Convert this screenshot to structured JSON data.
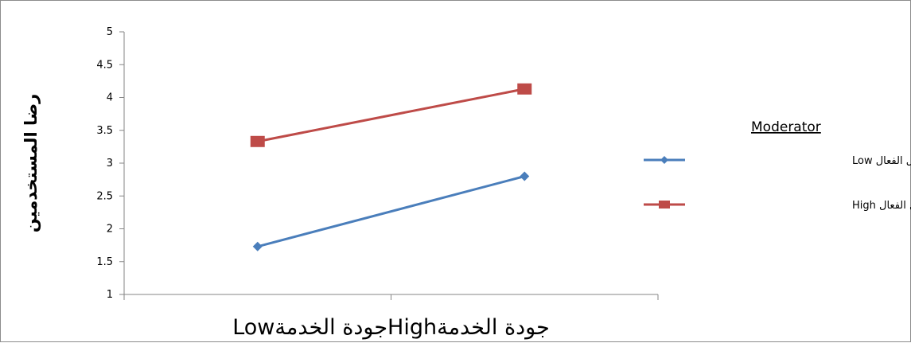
{
  "chart_data": {
    "type": "line",
    "categories": [
      "Lowجودة الخدمة",
      "Highجودة الخدمة"
    ],
    "ylabel": "رضا المستخدمين",
    "ylim": [
      1,
      5
    ],
    "ytick_step": 0.5,
    "yticks": [
      "1",
      "1.5",
      "2",
      "2.5",
      "3",
      "3.5",
      "4",
      "4.5",
      "5"
    ],
    "grid": false,
    "legend_position": "right",
    "legend_title": "Moderator",
    "series": [
      {
        "name": "Low الاتصال الفعال",
        "values": [
          1.73,
          2.8
        ],
        "color": "#4a7ebb",
        "marker": "diamond"
      },
      {
        "name": "High الاتصال الفعال",
        "values": [
          3.33,
          4.13
        ],
        "color": "#be4b48",
        "marker": "square"
      }
    ]
  }
}
